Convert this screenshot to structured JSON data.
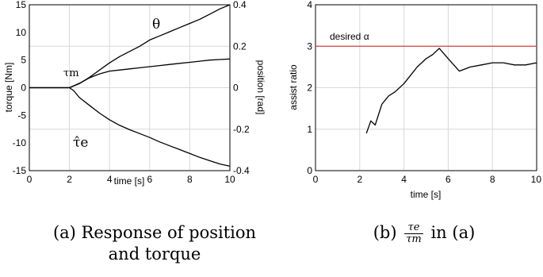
{
  "chart_data": [
    {
      "type": "line",
      "panel": "a",
      "xlabel": "time [s]",
      "ylabel_left": "torque [Nm]",
      "ylabel_right": "position [rad]",
      "xlim": [
        0,
        10
      ],
      "ylim_left": [
        -15,
        15
      ],
      "ylim_right": [
        -0.4,
        0.4
      ],
      "xticks": [
        "0",
        "2",
        "4",
        "6",
        "8",
        "10"
      ],
      "yticks_left": [
        "15",
        "10",
        "5",
        "0",
        "-5",
        "-10",
        "-15"
      ],
      "yticks_right": [
        "0.4",
        "0.2",
        "0",
        "-0.2",
        "-0.4"
      ],
      "grid": true,
      "annotations": {
        "theta": "θ",
        "tau_m": "τm",
        "tau_e_hat": "τ̂e"
      },
      "series": [
        {
          "axis": "right",
          "x": [
            0,
            2.0,
            2.5,
            3.0,
            3.5,
            4.0,
            4.5,
            5.0,
            5.5,
            6.0,
            6.5,
            7.0,
            7.5,
            8.0,
            8.5,
            9.0,
            9.5,
            10.0
          ],
          "y": [
            0,
            0,
            0.02,
            0.05,
            0.085,
            0.12,
            0.15,
            0.175,
            0.2,
            0.23,
            0.25,
            0.27,
            0.29,
            0.31,
            0.33,
            0.355,
            0.38,
            0.4
          ]
        },
        {
          "axis": "left",
          "x": [
            0,
            2.0,
            2.5,
            3.0,
            3.5,
            4.0,
            4.5,
            5.0,
            5.5,
            6.0,
            6.5,
            7.0,
            7.5,
            8.0,
            8.5,
            9.0,
            9.5,
            10.0
          ],
          "y": [
            0,
            0,
            0.8,
            1.8,
            2.5,
            3.0,
            3.2,
            3.4,
            3.6,
            3.8,
            4.0,
            4.2,
            4.4,
            4.6,
            4.8,
            5.0,
            5.1,
            5.2
          ]
        },
        {
          "axis": "left",
          "x": [
            0,
            2.0,
            2.2,
            2.5,
            3.0,
            3.5,
            4.0,
            4.5,
            5.0,
            5.5,
            6.0,
            6.5,
            7.0,
            7.5,
            8.0,
            8.5,
            9.0,
            9.5,
            10.0
          ],
          "y": [
            0,
            0,
            -0.5,
            -1.8,
            -3.2,
            -4.6,
            -5.8,
            -6.8,
            -7.6,
            -8.3,
            -9.0,
            -9.8,
            -10.5,
            -11.2,
            -11.9,
            -12.6,
            -13.2,
            -13.8,
            -14.2
          ]
        }
      ]
    },
    {
      "type": "line",
      "panel": "b",
      "xlabel": "time [s]",
      "ylabel": "assist ratio",
      "xlim": [
        0,
        10
      ],
      "ylim": [
        0,
        4
      ],
      "xticks": [
        "0",
        "2",
        "4",
        "6",
        "8",
        "10"
      ],
      "yticks": [
        "4",
        "3",
        "2",
        "1",
        "0"
      ],
      "grid": true,
      "reference_line": {
        "y": 3,
        "label": "desired α",
        "color": "#d94040"
      },
      "series": [
        {
          "x": [
            2.3,
            2.5,
            2.7,
            3.0,
            3.3,
            3.6,
            4.0,
            4.3,
            4.6,
            5.0,
            5.3,
            5.6,
            6.0,
            6.5,
            7.0,
            7.5,
            8.0,
            8.5,
            9.0,
            9.5,
            10.0
          ],
          "y": [
            0.9,
            1.2,
            1.1,
            1.6,
            1.8,
            1.9,
            2.1,
            2.3,
            2.5,
            2.7,
            2.8,
            2.95,
            2.7,
            2.4,
            2.5,
            2.55,
            2.6,
            2.6,
            2.55,
            2.55,
            2.6
          ]
        }
      ]
    }
  ],
  "captions": {
    "a_line1": "(a) Response of position",
    "a_line2": "and torque",
    "b_prefix": "(b)",
    "b_num": "τe",
    "b_den": "τm",
    "b_suffix": "in (a)"
  }
}
